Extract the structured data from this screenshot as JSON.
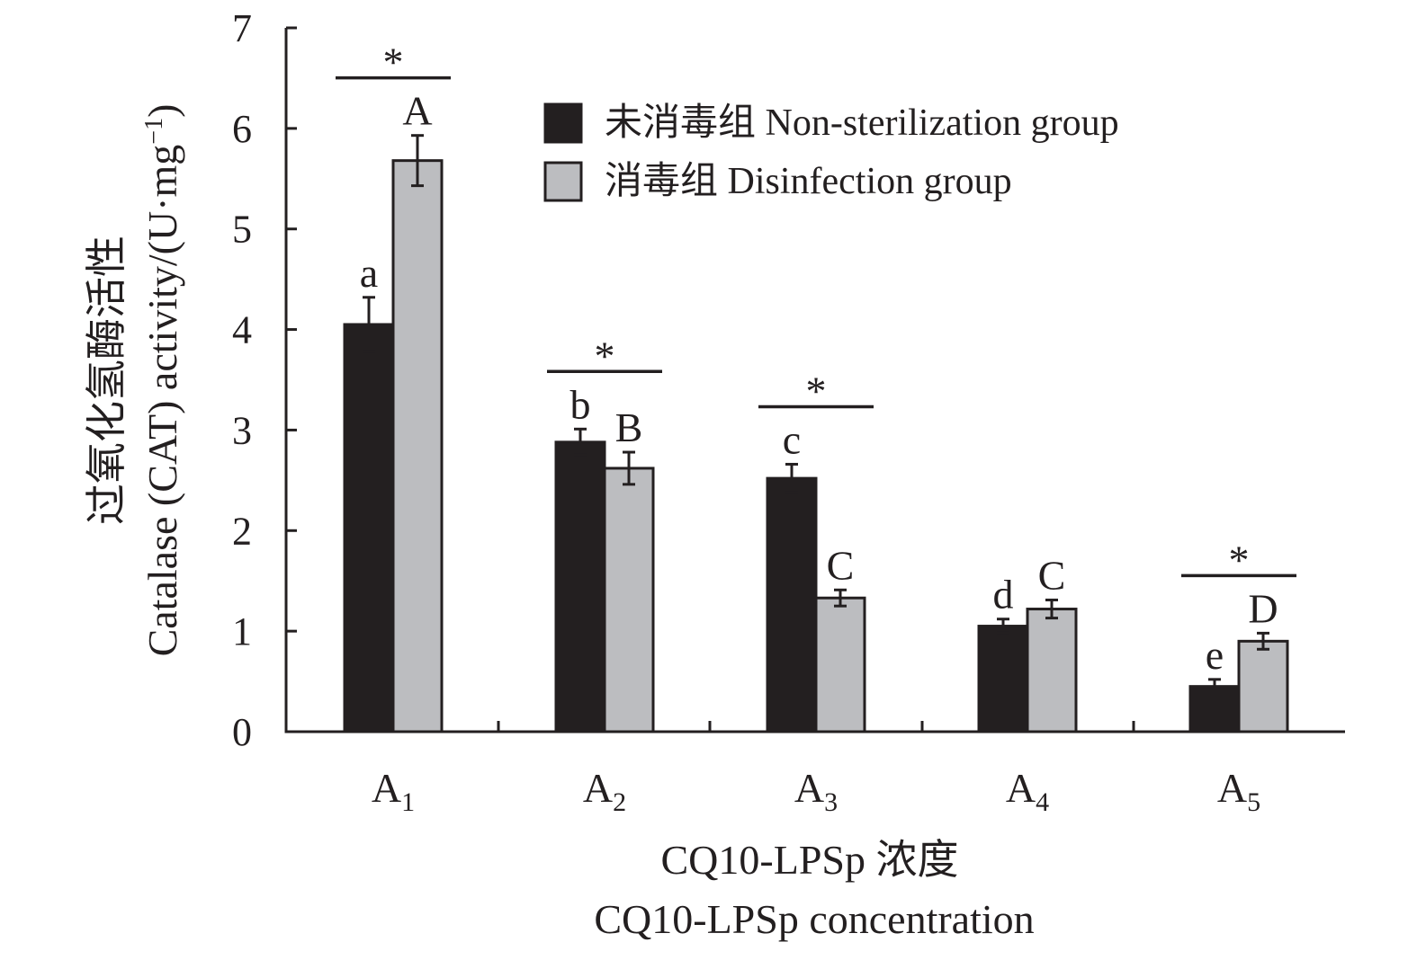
{
  "chart_data": {
    "type": "bar",
    "categories": [
      "A1",
      "A2",
      "A3",
      "A4",
      "A5"
    ],
    "category_labels": [
      {
        "main": "A",
        "sub": "1"
      },
      {
        "main": "A",
        "sub": "2"
      },
      {
        "main": "A",
        "sub": "3"
      },
      {
        "main": "A",
        "sub": "4"
      },
      {
        "main": "A",
        "sub": "5"
      }
    ],
    "series": [
      {
        "name": "未消毒组 Non-sterilization group",
        "color": "#231f20",
        "values": [
          4.05,
          2.88,
          2.52,
          1.05,
          0.45
        ],
        "errors": [
          0.27,
          0.13,
          0.14,
          0.07,
          0.07
        ],
        "letters": [
          "a",
          "b",
          "c",
          "d",
          "e"
        ]
      },
      {
        "name": "消毒组 Disinfection group",
        "color": "#bcbdc0",
        "values": [
          5.68,
          2.62,
          1.33,
          1.22,
          0.9
        ],
        "errors": [
          0.25,
          0.16,
          0.08,
          0.09,
          0.08
        ],
        "letters": [
          "A",
          "B",
          "C",
          "C",
          "D"
        ]
      }
    ],
    "significance": [
      true,
      true,
      true,
      false,
      true
    ],
    "significance_marker": "*",
    "ylim": [
      0,
      7
    ],
    "yticks": [
      "0",
      "1",
      "2",
      "3",
      "4",
      "5",
      "6",
      "7"
    ],
    "ylabel_cn": "过氧化氢酶活性",
    "ylabel_en": "Catalase (CAT) activity/(U·mg",
    "ylabel_sup": "−1",
    "ylabel_end": ")",
    "xlabel_cn": "CQ10-LPSp 浓度",
    "xlabel_en": "CQ10-LPSp concentration",
    "legend_position": "top-right",
    "grid": false
  }
}
